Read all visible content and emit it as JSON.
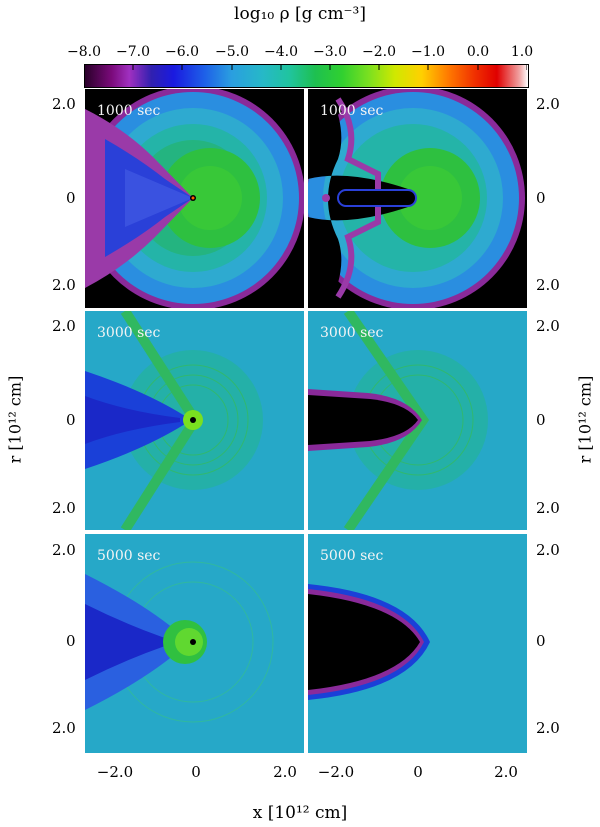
{
  "colorbar": {
    "title": "log₁₀ ρ [g cm⁻³]",
    "ticks": [
      "−8.0",
      "−7.0",
      "−6.0",
      "−5.0",
      "−4.0",
      "−3.0",
      "−2.0",
      "−1.0",
      "0.0",
      "1.0"
    ]
  },
  "panels": [
    {
      "time": "1000 sec"
    },
    {
      "time": "1000 sec"
    },
    {
      "time": "3000 sec"
    },
    {
      "time": "3000 sec"
    },
    {
      "time": "5000 sec"
    },
    {
      "time": "5000 sec"
    }
  ],
  "yticks": [
    "2.0",
    "0",
    "2.0"
  ],
  "xticks": [
    "−2.0",
    "0",
    "2.0"
  ],
  "xlabel": "x [10¹² cm]",
  "ylabel": "r [10¹² cm]",
  "colors": {
    "black": "#000000",
    "purple": "#8a2a9a",
    "blue": "#1a28d8",
    "cyan": "#29a7d8",
    "teal": "#22b8b0",
    "green": "#36c038"
  }
}
